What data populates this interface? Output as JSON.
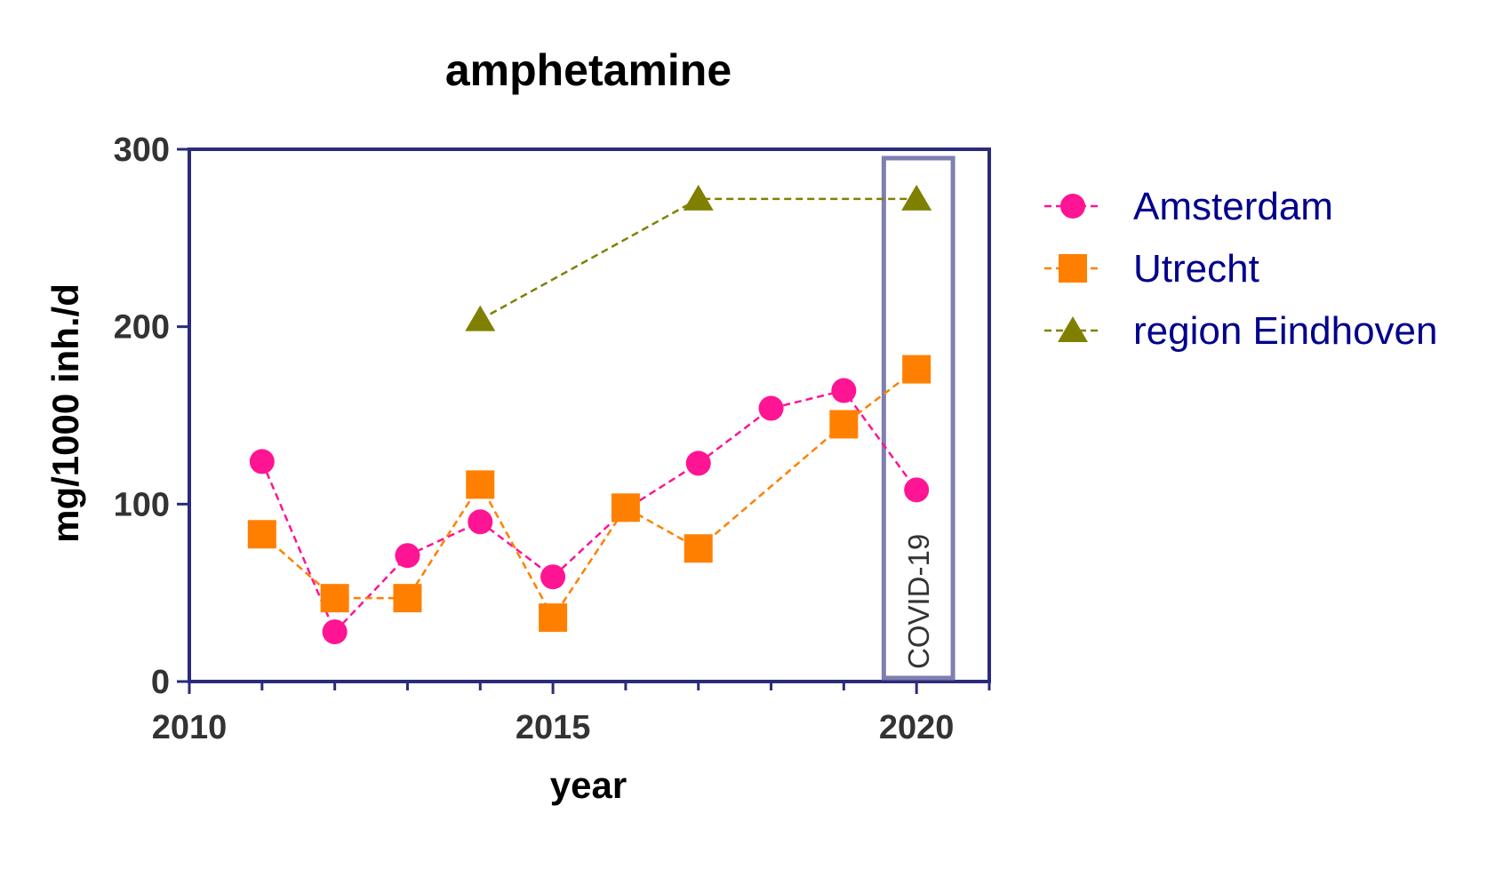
{
  "chart_data": {
    "type": "line",
    "title": "amphetamine",
    "xlabel": "year",
    "ylabel": "mg/1000 inh./d",
    "xlim": [
      2010,
      2021
    ],
    "ylim": [
      0,
      300
    ],
    "x_ticks": [
      2010,
      2015,
      2020
    ],
    "y_ticks": [
      0,
      100,
      200,
      300
    ],
    "grid": false,
    "legend_position": "right",
    "series": [
      {
        "name": "Amsterdam",
        "marker": "circle",
        "line": "dashed",
        "color": "#ff1493",
        "points": [
          {
            "x": 2011,
            "y": 124
          },
          {
            "x": 2012,
            "y": 28
          },
          {
            "x": 2013,
            "y": 71
          },
          {
            "x": 2014,
            "y": 90
          },
          {
            "x": 2015,
            "y": 59
          },
          {
            "x": 2016,
            "y": 97
          },
          {
            "x": 2017,
            "y": 123
          },
          {
            "x": 2018,
            "y": 154
          },
          {
            "x": 2019,
            "y": 164
          },
          {
            "x": 2020,
            "y": 108
          }
        ]
      },
      {
        "name": "Utrecht",
        "marker": "square",
        "line": "dashed",
        "color": "#ff8000",
        "points": [
          {
            "x": 2011,
            "y": 83
          },
          {
            "x": 2012,
            "y": 47
          },
          {
            "x": 2013,
            "y": 47
          },
          {
            "x": 2014,
            "y": 111
          },
          {
            "x": 2015,
            "y": 36
          },
          {
            "x": 2016,
            "y": 98
          },
          {
            "x": 2017,
            "y": 75
          },
          {
            "x": 2019,
            "y": 145
          },
          {
            "x": 2020,
            "y": 176
          }
        ]
      },
      {
        "name": "region Eindhoven",
        "marker": "triangle",
        "line": "dashed",
        "color": "#808000",
        "points": [
          {
            "x": 2014,
            "y": 204
          },
          {
            "x": 2017,
            "y": 272
          },
          {
            "x": 2020,
            "y": 272
          }
        ]
      }
    ],
    "annotations": [
      {
        "text": "COVID-19",
        "x_range": [
          2019.55,
          2020.5
        ],
        "y_range": [
          2,
          295
        ],
        "color": "#7f7fb0"
      }
    ]
  },
  "colors": {
    "axis": "#2b2b7a",
    "legend_text": "#00008b",
    "annotation_box": "#7f7fb0"
  }
}
